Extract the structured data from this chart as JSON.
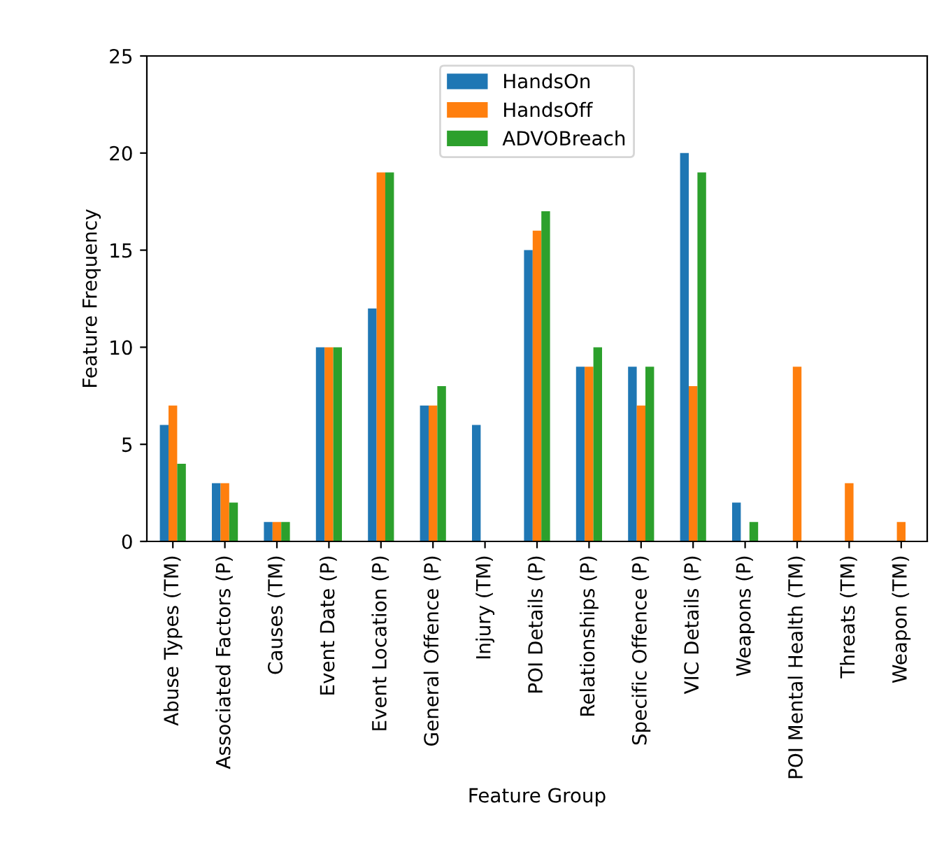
{
  "chart_data": {
    "type": "bar",
    "xlabel": "Feature Group",
    "ylabel": "Feature Frequency",
    "categories": [
      "Abuse Types (TM)",
      "Associated Factors (P)",
      "Causes (TM)",
      "Event Date (P)",
      "Event Location (P)",
      "General Offence (P)",
      "Injury (TM)",
      "POI Details (P)",
      "Relationships (P)",
      "Specific Offence (P)",
      "VIC Details (P)",
      "Weapons (P)",
      "POI Mental Health (TM)",
      "Threats (TM)",
      "Weapon (TM)"
    ],
    "series": [
      {
        "name": "HandsOn",
        "color": "#1f77b4",
        "values": [
          6,
          3,
          1,
          10,
          12,
          7,
          6,
          15,
          9,
          9,
          20,
          2,
          0,
          0,
          0
        ]
      },
      {
        "name": "HandsOff",
        "color": "#ff7f0e",
        "values": [
          7,
          3,
          1,
          10,
          19,
          7,
          0,
          16,
          9,
          7,
          8,
          0,
          9,
          3,
          1
        ]
      },
      {
        "name": "ADVOBreach",
        "color": "#2ca02c",
        "values": [
          4,
          2,
          1,
          10,
          19,
          8,
          0,
          17,
          10,
          9,
          19,
          1,
          0,
          0,
          0
        ]
      }
    ],
    "ylim": [
      0,
      25
    ],
    "yticks": [
      0,
      5,
      10,
      15,
      20,
      25
    ],
    "grid": false,
    "legend": "top"
  }
}
